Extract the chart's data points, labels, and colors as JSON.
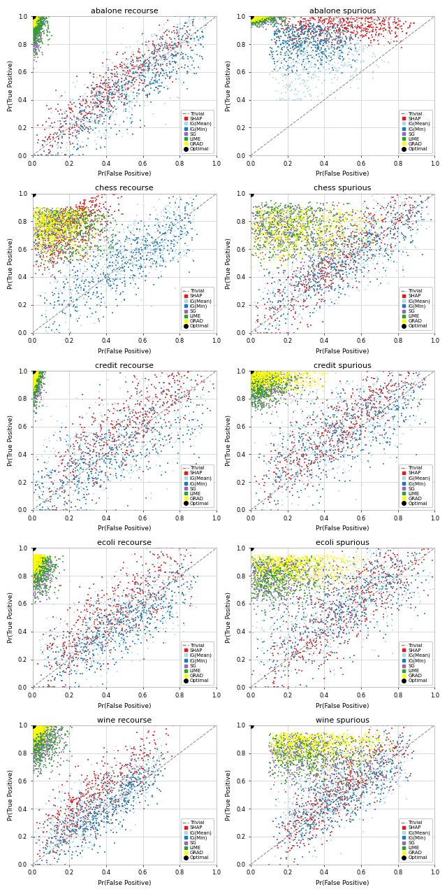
{
  "plots": [
    {
      "title": "abalone recourse",
      "type": "recourse",
      "dataset": "abalone"
    },
    {
      "title": "abalone spurious",
      "type": "spurious",
      "dataset": "abalone"
    },
    {
      "title": "chess recourse",
      "type": "recourse",
      "dataset": "chess"
    },
    {
      "title": "chess spurious",
      "type": "spurious",
      "dataset": "chess"
    },
    {
      "title": "credit recourse",
      "type": "recourse",
      "dataset": "credit"
    },
    {
      "title": "credit spurious",
      "type": "spurious",
      "dataset": "credit"
    },
    {
      "title": "ecoli recourse",
      "type": "recourse",
      "dataset": "ecoli"
    },
    {
      "title": "ecoli spurious",
      "type": "spurious",
      "dataset": "ecoli"
    },
    {
      "title": "wine recourse",
      "type": "recourse",
      "dataset": "wine"
    },
    {
      "title": "wine spurious",
      "type": "spurious",
      "dataset": "wine"
    }
  ],
  "methods": [
    "SHAP",
    "IG(Mean)",
    "IG(Min)",
    "SG",
    "LIME",
    "GRAD"
  ],
  "colors": {
    "SHAP": "#e41a1c",
    "IG(Mean)": "#add8e6",
    "IG(Min)": "#1f77b4",
    "SG": "#9467bd",
    "LIME": "#2ca02c",
    "GRAD": "#ffff00"
  },
  "marker_size": 3,
  "alpha": 0.75,
  "n_points": 500,
  "optimal_point": [
    0.0,
    1.0
  ],
  "xlabel": "Pr(False Positive)",
  "ylabel": "Pr(True Positive)",
  "figsize": [
    6.4,
    12.78
  ],
  "dpi": 100,
  "bg_color": "#f0f0f0",
  "grid_color": "white"
}
